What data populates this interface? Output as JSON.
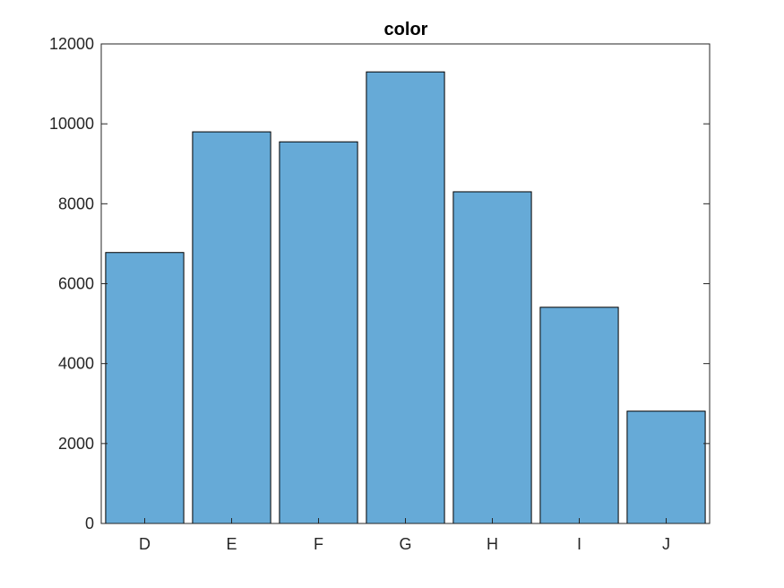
{
  "chart_data": {
    "type": "bar",
    "title": "color",
    "xlabel": "",
    "ylabel": "",
    "categories": [
      "D",
      "E",
      "F",
      "G",
      "H",
      "I",
      "J"
    ],
    "values": [
      6780,
      9800,
      9550,
      11300,
      8300,
      5410,
      2810
    ],
    "ylim": [
      0,
      12000
    ],
    "yticks": [
      0,
      2000,
      4000,
      6000,
      8000,
      10000,
      12000
    ],
    "grid": false,
    "legend": "none",
    "bar_color": "#66aad7",
    "edge_color": "#000000",
    "axis_color": "#262626"
  }
}
